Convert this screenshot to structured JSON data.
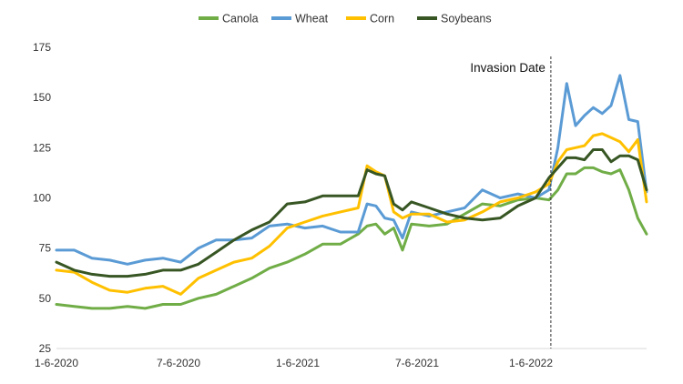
{
  "chart_data": {
    "type": "line",
    "title": "",
    "xlabel": "",
    "ylabel": "",
    "ylim": [
      25,
      175
    ],
    "yticks": [
      25,
      50,
      75,
      100,
      125,
      150,
      175
    ],
    "x_tick_labels": [
      "1-6-2020",
      "7-6-2020",
      "1-6-2021",
      "7-6-2021",
      "1-6-2022"
    ],
    "grid": false,
    "legend_position": "top",
    "annotation": {
      "text": "Invasion Date",
      "x": "2022-02-24"
    },
    "x": [
      "2020-01-06",
      "2020-02-03",
      "2020-03-02",
      "2020-03-30",
      "2020-04-27",
      "2020-05-25",
      "2020-06-22",
      "2020-07-20",
      "2020-08-17",
      "2020-09-14",
      "2020-10-12",
      "2020-11-09",
      "2020-12-07",
      "2021-01-04",
      "2021-02-01",
      "2021-03-01",
      "2021-03-29",
      "2021-04-26",
      "2021-05-10",
      "2021-05-24",
      "2021-06-07",
      "2021-06-21",
      "2021-07-05",
      "2021-07-19",
      "2021-08-16",
      "2021-09-13",
      "2021-10-11",
      "2021-11-08",
      "2021-12-06",
      "2022-01-03",
      "2022-01-31",
      "2022-02-21",
      "2022-03-07",
      "2022-03-21",
      "2022-04-04",
      "2022-04-18",
      "2022-05-02",
      "2022-05-16",
      "2022-05-30",
      "2022-06-13",
      "2022-06-27",
      "2022-07-11",
      "2022-07-25"
    ],
    "series": [
      {
        "name": "Canola",
        "color": "#70ad47",
        "values": [
          47,
          46,
          45,
          45,
          46,
          45,
          47,
          47,
          50,
          52,
          56,
          60,
          65,
          68,
          72,
          77,
          77,
          82,
          86,
          87,
          82,
          85,
          74,
          87,
          86,
          87,
          92,
          97,
          96,
          99,
          100,
          99,
          104,
          112,
          112,
          115,
          115,
          113,
          112,
          114,
          104,
          90,
          82
        ]
      },
      {
        "name": "Wheat",
        "color": "#5b9bd5",
        "values": [
          74,
          74,
          70,
          69,
          67,
          69,
          70,
          68,
          75,
          79,
          79,
          80,
          86,
          87,
          85,
          86,
          83,
          83,
          97,
          96,
          90,
          89,
          80,
          93,
          91,
          93,
          95,
          104,
          100,
          102,
          100,
          104,
          125,
          157,
          136,
          141,
          145,
          142,
          146,
          161,
          139,
          138,
          103
        ]
      },
      {
        "name": "Corn",
        "color": "#ffc000",
        "values": [
          64,
          63,
          58,
          54,
          53,
          55,
          56,
          52,
          60,
          64,
          68,
          70,
          76,
          85,
          88,
          91,
          93,
          95,
          116,
          113,
          111,
          93,
          90,
          92,
          92,
          88,
          89,
          93,
          98,
          100,
          103,
          107,
          118,
          124,
          125,
          126,
          131,
          132,
          130,
          128,
          123,
          129,
          98
        ]
      },
      {
        "name": "Soybeans",
        "color": "#375623",
        "values": [
          68,
          64,
          62,
          61,
          61,
          62,
          64,
          64,
          67,
          73,
          79,
          84,
          88,
          97,
          98,
          101,
          101,
          101,
          114,
          112,
          111,
          97,
          94,
          98,
          95,
          92,
          90,
          89,
          90,
          96,
          100,
          110,
          115,
          120,
          120,
          119,
          124,
          124,
          118,
          121,
          121,
          119,
          104
        ]
      }
    ]
  }
}
